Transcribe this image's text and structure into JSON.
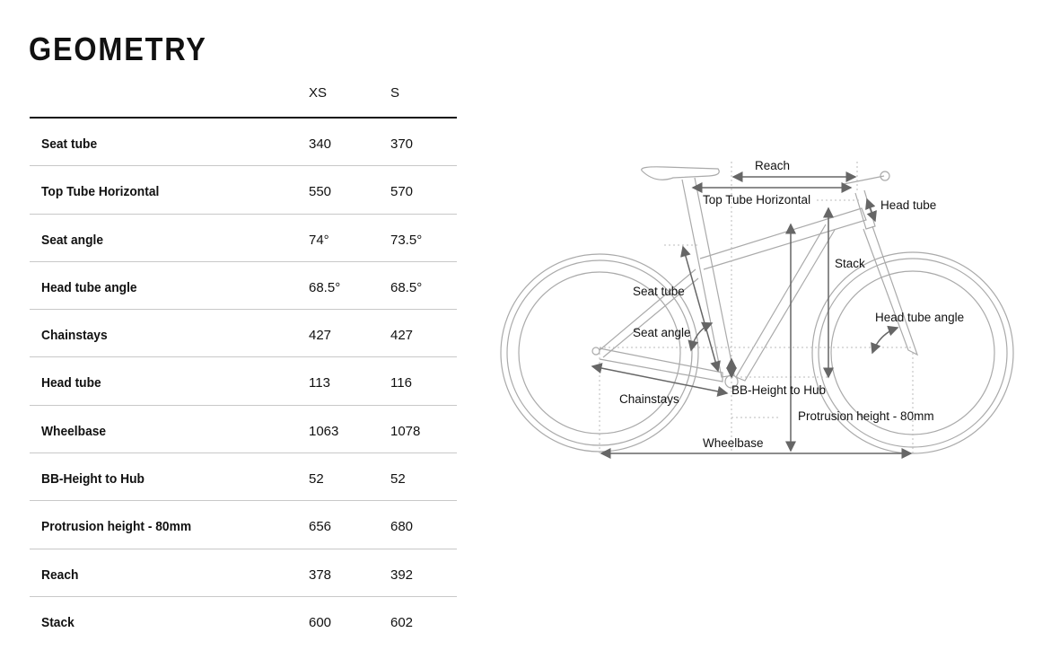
{
  "title": "GEOMETRY",
  "table": {
    "columns": [
      "",
      "XS",
      "S"
    ],
    "rows": [
      {
        "label": "Seat tube",
        "xs": "340",
        "s": "370"
      },
      {
        "label": "Top Tube Horizontal",
        "xs": "550",
        "s": "570"
      },
      {
        "label": "Seat angle",
        "xs": "74°",
        "s": "73.5°"
      },
      {
        "label": "Head tube angle",
        "xs": "68.5°",
        "s": "68.5°"
      },
      {
        "label": "Chainstays",
        "xs": "427",
        "s": "427"
      },
      {
        "label": "Head tube",
        "xs": "113",
        "s": "116"
      },
      {
        "label": "Wheelbase",
        "xs": "1063",
        "s": "1078"
      },
      {
        "label": "BB-Height to Hub",
        "xs": "52",
        "s": "52"
      },
      {
        "label": "Protrusion height - 80mm",
        "xs": "656",
        "s": "680"
      },
      {
        "label": "Reach",
        "xs": "378",
        "s": "392"
      },
      {
        "label": "Stack",
        "xs": "600",
        "s": "602"
      }
    ]
  },
  "diagram": {
    "labels": {
      "reach": "Reach",
      "top_tube": "Top Tube Horizontal",
      "head_tube": "Head tube",
      "stack": "Stack",
      "seat_tube": "Seat tube",
      "head_tube_angle": "Head tube angle",
      "seat_angle": "Seat angle",
      "chainstays": "Chainstays",
      "bb_height": "BB-Height to Hub",
      "protrusion": "Protrusion height - 80mm",
      "wheelbase": "Wheelbase"
    }
  }
}
